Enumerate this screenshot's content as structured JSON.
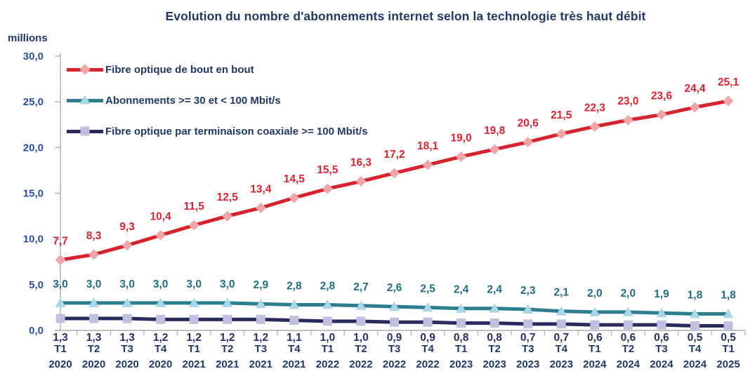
{
  "chart_data": {
    "type": "line",
    "title": "Evolution du nombre d'abonnements internet selon la technologie très haut débit",
    "y_unit_label": "millions",
    "title_color": "#1F3864",
    "axis_color": "#ADADAD",
    "y_tick_label_color": "#2B4FA0",
    "x_tick_label_color": "#1F3864",
    "grid": false,
    "legend_position": "top-left",
    "ylim": [
      0,
      30
    ],
    "y_ticks": [
      {
        "value": 0,
        "label": "0,0"
      },
      {
        "value": 5,
        "label": "5,0"
      },
      {
        "value": 10,
        "label": "10,0"
      },
      {
        "value": 15,
        "label": "15,0"
      },
      {
        "value": 20,
        "label": "20,0"
      },
      {
        "value": 25,
        "label": "25,0"
      },
      {
        "value": 30,
        "label": "30,0"
      }
    ],
    "x_quarters": [
      "T1",
      "T2",
      "T3",
      "T4",
      "T1",
      "T2",
      "T3",
      "T4",
      "T1",
      "T2",
      "T3",
      "T4",
      "T1",
      "T2",
      "T3",
      "T4",
      "T1",
      "T2",
      "T3",
      "T4",
      "T1"
    ],
    "x_years": [
      "2020",
      "2020",
      "2020",
      "2020",
      "2021",
      "2021",
      "2021",
      "2021",
      "2022",
      "2022",
      "2022",
      "2022",
      "2023",
      "2023",
      "2023",
      "2023",
      "2024",
      "2024",
      "2024",
      "2024",
      "2025"
    ],
    "series": [
      {
        "name": "Fibre optique de bout en bout",
        "marker": "diamond",
        "line_color": "#D7232B",
        "marker_color": "#F0A6A8",
        "label_color": "#DE2230",
        "label_placement": "above",
        "values": [
          7.7,
          8.3,
          9.3,
          10.4,
          11.5,
          12.5,
          13.4,
          14.5,
          15.5,
          16.3,
          17.2,
          18.1,
          19.0,
          19.8,
          20.6,
          21.5,
          22.3,
          23.0,
          23.6,
          24.4,
          25.1
        ],
        "labels": [
          "7,7",
          "8,3",
          "9,3",
          "10,4",
          "11,5",
          "12,5",
          "13,4",
          "14,5",
          "15,5",
          "16,3",
          "17,2",
          "18,1",
          "19,0",
          "19,8",
          "20,6",
          "21,5",
          "22,3",
          "23,0",
          "23,6",
          "24,4",
          "25,1"
        ]
      },
      {
        "name": "Abonnements >= 30 et < 100 Mbit/s",
        "marker": "triangle",
        "line_color": "#2E7E92",
        "marker_color": "#A9D6E8",
        "label_color": "#1E6E80",
        "label_placement": "above",
        "values": [
          3.0,
          3.0,
          3.0,
          3.0,
          3.0,
          3.0,
          2.9,
          2.8,
          2.8,
          2.7,
          2.6,
          2.5,
          2.4,
          2.4,
          2.3,
          2.1,
          2.0,
          2.0,
          1.9,
          1.8,
          1.8
        ],
        "labels": [
          "3,0",
          "3,0",
          "3,0",
          "3,0",
          "3,0",
          "3,0",
          "2,9",
          "2,8",
          "2,8",
          "2,7",
          "2,6",
          "2,5",
          "2,4",
          "2,4",
          "2,3",
          "2,1",
          "2,0",
          "2,0",
          "1,9",
          "1,8",
          "1,8"
        ]
      },
      {
        "name": "Fibre optique par terminaison coaxiale >= 100 Mbit/s",
        "marker": "square",
        "line_color": "#2A2A5C",
        "marker_color": "#C1BEE0",
        "label_color": "#272E61",
        "label_placement": "below-axis",
        "values": [
          1.3,
          1.3,
          1.3,
          1.2,
          1.2,
          1.2,
          1.2,
          1.1,
          1.0,
          1.0,
          0.9,
          0.9,
          0.8,
          0.8,
          0.7,
          0.7,
          0.6,
          0.6,
          0.6,
          0.5,
          0.5
        ],
        "labels": [
          "1,3",
          "1,3",
          "1,3",
          "1,2",
          "1,2",
          "1,2",
          "1,2",
          "1,1",
          "1,0",
          "1,0",
          "0,9",
          "0,9",
          "0,8",
          "0,8",
          "0,7",
          "0,7",
          "0,6",
          "0,6",
          "0,6",
          "0,5",
          "0,5"
        ]
      }
    ]
  }
}
